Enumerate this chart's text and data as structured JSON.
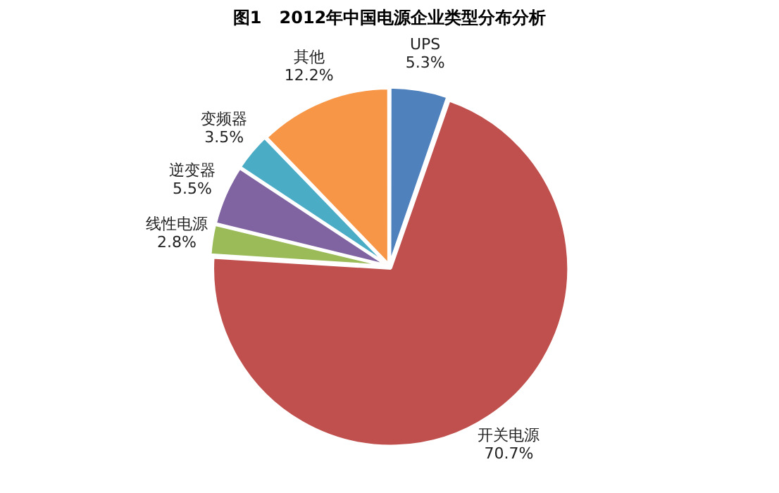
{
  "chart_data": {
    "type": "pie",
    "title": "图1   2012年中国电源企业类型分布分析",
    "categories": [
      "UPS",
      "开关电源",
      "线性电源",
      "逆变器",
      "变频器",
      "其他"
    ],
    "values": [
      5.3,
      70.7,
      2.8,
      5.5,
      3.5,
      12.2
    ],
    "value_labels": [
      "5.3%",
      "70.7%",
      "2.8%",
      "5.5%",
      "3.5%",
      "12.2%"
    ],
    "colors": [
      "#4f81bd",
      "#c0504d",
      "#9bbb59",
      "#8064a2",
      "#4bacc6",
      "#f79646"
    ],
    "legend": false
  }
}
